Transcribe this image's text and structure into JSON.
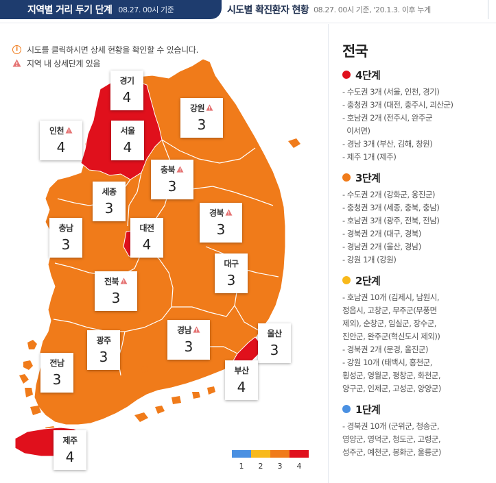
{
  "tabs": {
    "active_title": "지역별 거리 두기 단계",
    "active_sub": "08.27. 00시 기준",
    "other_title": "시도별 확진환자 현황",
    "other_sub": "08.27. 00시 기준, '20.1.3. 이후 누계"
  },
  "notes": {
    "click_hint": "시도를 클릭하시면 상세 현황을 확인할 수 있습니다.",
    "warn_hint": "지역 내 상세단계 있음"
  },
  "colors": {
    "level1": "#4a90e2",
    "level2": "#f8b91b",
    "level3": "#f07b1a",
    "level4": "#e0101c"
  },
  "regions": [
    {
      "name": "경기",
      "level": "4",
      "warn": false
    },
    {
      "name": "강원",
      "level": "3",
      "warn": true
    },
    {
      "name": "인천",
      "level": "4",
      "warn": true
    },
    {
      "name": "서울",
      "level": "4",
      "warn": false
    },
    {
      "name": "충북",
      "level": "3",
      "warn": true
    },
    {
      "name": "세종",
      "level": "3",
      "warn": false
    },
    {
      "name": "경북",
      "level": "3",
      "warn": true
    },
    {
      "name": "충남",
      "level": "3",
      "warn": false
    },
    {
      "name": "대전",
      "level": "4",
      "warn": false
    },
    {
      "name": "대구",
      "level": "3",
      "warn": false
    },
    {
      "name": "전북",
      "level": "3",
      "warn": true
    },
    {
      "name": "경남",
      "level": "3",
      "warn": true
    },
    {
      "name": "울산",
      "level": "3",
      "warn": false
    },
    {
      "name": "광주",
      "level": "3",
      "warn": false
    },
    {
      "name": "전남",
      "level": "3",
      "warn": false
    },
    {
      "name": "부산",
      "level": "4",
      "warn": false
    },
    {
      "name": "제주",
      "level": "4",
      "warn": false
    }
  ],
  "legend": [
    "1",
    "2",
    "3",
    "4"
  ],
  "panel": {
    "title": "전국",
    "groups": [
      {
        "name": "4단계",
        "color": "#e0101c",
        "items": [
          "- 수도권 3개 (서울, 인천, 경기)",
          "- 충청권 3개 (대전, 충주시, 괴산군)",
          "- 호남권 2개 (전주시, 완주군",
          "  이서면)",
          "- 경남 3개 (부산, 김해, 창원)",
          "- 제주 1개 (제주)"
        ]
      },
      {
        "name": "3단계",
        "color": "#f07b1a",
        "items": [
          "- 수도권 2개 (강화군, 옹진군)",
          "- 충청권 3개 (세종, 충북, 충남)",
          "- 호남권 3개 (광주, 전북, 전남)",
          "- 경북권 2개 (대구, 경북)",
          "- 경남권 2개 (울산, 경남)",
          "- 강원 1개 (강원)"
        ]
      },
      {
        "name": "2단계",
        "color": "#f8b91b",
        "items": [
          "- 호남권 10개 (김제시, 남원시,",
          "정읍시, 고창군, 무주군(무풍면",
          "제외), 순창군, 임실군, 장수군,",
          "진안군, 완주군(혁신도시 제외))",
          "- 경북권 2개 (문경, 울진군)",
          "- 강원 10개 (태백시, 홍천군,",
          "횡성군, 영월군, 평창군, 화천군,",
          "양구군, 인제군, 고성군, 양양군)"
        ]
      },
      {
        "name": "1단계",
        "color": "#4a90e2",
        "items": [
          "- 경북권 10개 (군위군, 청송군,",
          "영양군, 영덕군, 청도군, 고령군,",
          "성주군, 예천군, 봉화군, 울릉군)"
        ]
      }
    ]
  }
}
